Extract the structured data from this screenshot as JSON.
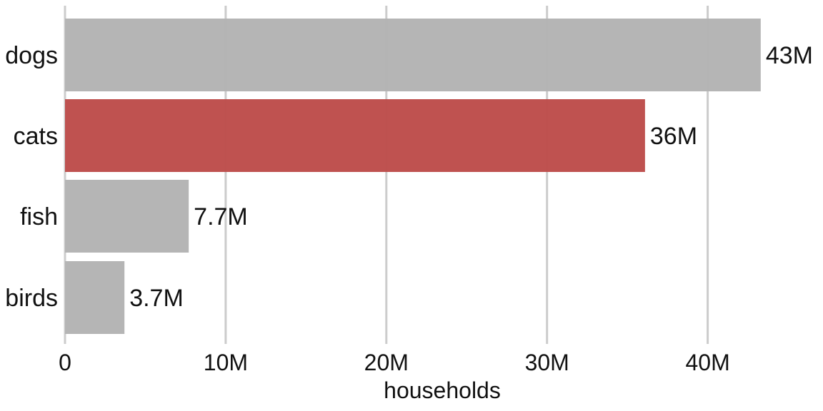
{
  "chart_data": {
    "type": "bar",
    "orientation": "horizontal",
    "categories": [
      "dogs",
      "cats",
      "fish",
      "birds"
    ],
    "values": [
      43300000,
      36100000,
      7700000,
      3700000
    ],
    "value_labels": [
      "43M",
      "36M",
      "7.7M",
      "3.7M"
    ],
    "highlight": "cats",
    "xlabel": "households",
    "xlim": [
      0,
      45000000
    ],
    "x_ticks": [
      0,
      10000000,
      20000000,
      30000000,
      40000000
    ],
    "x_tick_labels": [
      "0",
      "10M",
      "20M",
      "30M",
      "40M"
    ],
    "grid": "vertical",
    "legend": "none"
  },
  "colors": {
    "bar": "#b3b3b3",
    "highlight": "#bd4c4a",
    "grid": "#cccccc",
    "text": "#111111"
  }
}
